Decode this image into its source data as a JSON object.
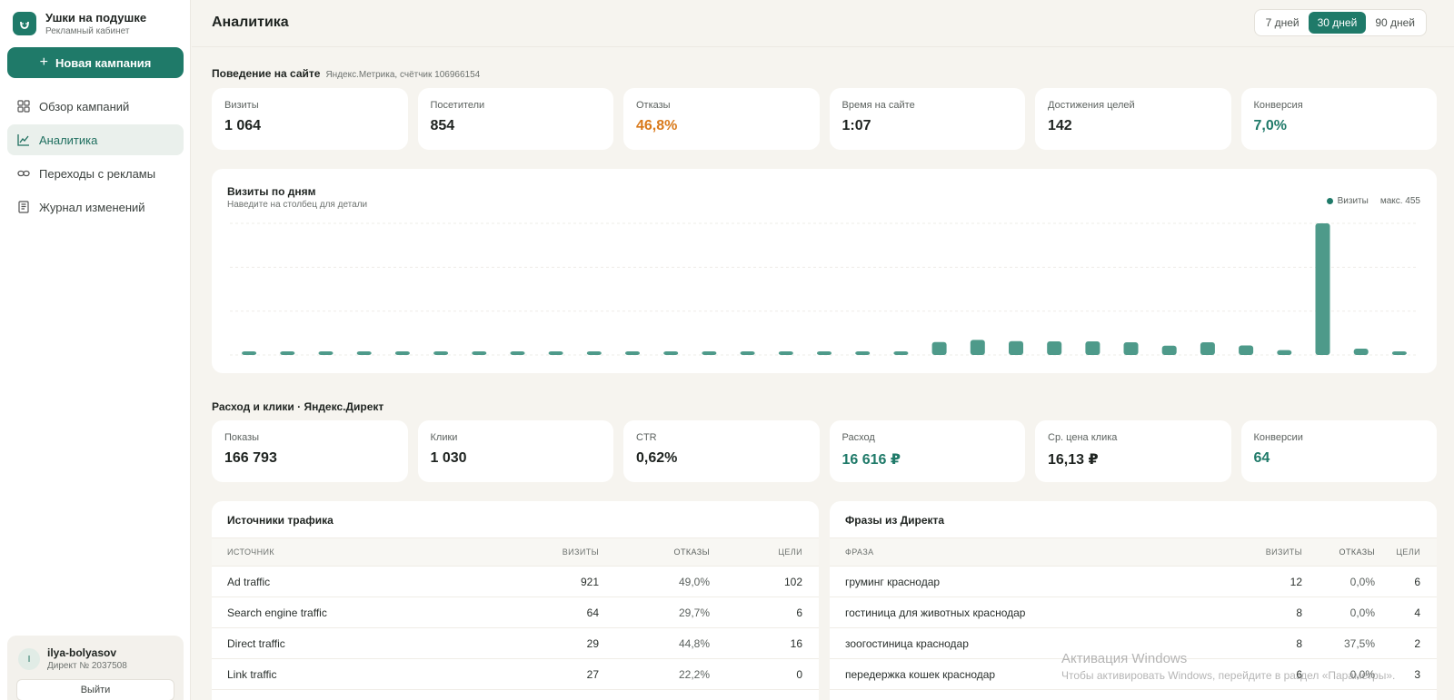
{
  "brand": {
    "title": "Ушки на подушке",
    "subtitle": "Рекламный кабинет"
  },
  "new_campaign_label": "Новая кампания",
  "nav": [
    {
      "label": "Обзор кампаний",
      "icon": "grid-icon",
      "active": false
    },
    {
      "label": "Аналитика",
      "icon": "chart-line-icon",
      "active": true
    },
    {
      "label": "Переходы с рекламы",
      "icon": "link-icon",
      "active": false
    },
    {
      "label": "Журнал изменений",
      "icon": "journal-icon",
      "active": false
    }
  ],
  "user": {
    "initial": "I",
    "name": "ilya-bolyasov",
    "sub": "Директ № 2037508",
    "logout": "Выйти"
  },
  "page_title": "Аналитика",
  "periods": [
    {
      "label": "7 дней",
      "active": false
    },
    {
      "label": "30 дней",
      "active": true
    },
    {
      "label": "90 дней",
      "active": false
    }
  ],
  "behavior": {
    "title": "Поведение на сайте",
    "source": "Яндекс.Метрика, счётчик 106966154",
    "kpis": [
      {
        "label": "Визиты",
        "value": "1 064",
        "tone": ""
      },
      {
        "label": "Посетители",
        "value": "854",
        "tone": ""
      },
      {
        "label": "Отказы",
        "value": "46,8%",
        "tone": "orange"
      },
      {
        "label": "Время на сайте",
        "value": "1:07",
        "tone": ""
      },
      {
        "label": "Достижения целей",
        "value": "142",
        "tone": ""
      },
      {
        "label": "Конверсия",
        "value": "7,0%",
        "tone": "teal"
      }
    ]
  },
  "chart": {
    "title": "Визиты по дням",
    "subtitle": "Наведите на столбец для детали",
    "legend": "Визиты",
    "max_label": "макс. 455"
  },
  "chart_data": {
    "type": "bar",
    "series": [
      {
        "name": "Визиты",
        "values": [
          8,
          8,
          8,
          8,
          8,
          8,
          8,
          8,
          8,
          8,
          8,
          8,
          8,
          8,
          8,
          8,
          8,
          8,
          45,
          52,
          48,
          47,
          47,
          44,
          32,
          44,
          33,
          17,
          455,
          22,
          12
        ]
      }
    ],
    "ylim": [
      0,
      455
    ],
    "grid": true,
    "color": "#4e9a8a"
  },
  "direct": {
    "title": "Расход и клики · Яндекс.Директ",
    "kpis": [
      {
        "label": "Показы",
        "value": "166 793",
        "tone": ""
      },
      {
        "label": "Клики",
        "value": "1 030",
        "tone": ""
      },
      {
        "label": "CTR",
        "value": "0,62%",
        "tone": ""
      },
      {
        "label": "Расход",
        "value": "16 616 ₽",
        "tone": "teal"
      },
      {
        "label": "Ср. цена клика",
        "value": "16,13 ₽",
        "tone": ""
      },
      {
        "label": "Конверсии",
        "value": "64",
        "tone": "teal"
      }
    ]
  },
  "sources": {
    "title": "Источники трафика",
    "headers": [
      "Источник",
      "Визиты",
      "Отказы",
      "Цели"
    ],
    "rows": [
      [
        "Ad traffic",
        "921",
        "49,0%",
        "102"
      ],
      [
        "Search engine traffic",
        "64",
        "29,7%",
        "6"
      ],
      [
        "Direct traffic",
        "29",
        "44,8%",
        "16"
      ],
      [
        "Link traffic",
        "27",
        "22,2%",
        "0"
      ]
    ]
  },
  "phrases": {
    "title": "Фразы из Директа",
    "headers": [
      "Фраза",
      "Визиты",
      "Отказы",
      "Цели"
    ],
    "rows": [
      [
        "груминг краснодар",
        "12",
        "0,0%",
        "6"
      ],
      [
        "гостиница для животных краснодар",
        "8",
        "0,0%",
        "4"
      ],
      [
        "зоогостиница краснодар",
        "8",
        "37,5%",
        "2"
      ],
      [
        "передержка кошек краснодар",
        "6",
        "0,0%",
        "3"
      ]
    ]
  },
  "watermark": {
    "line1": "Активация Windows",
    "line2": "Чтобы активировать Windows, перейдите в раздел «Параметры»."
  }
}
